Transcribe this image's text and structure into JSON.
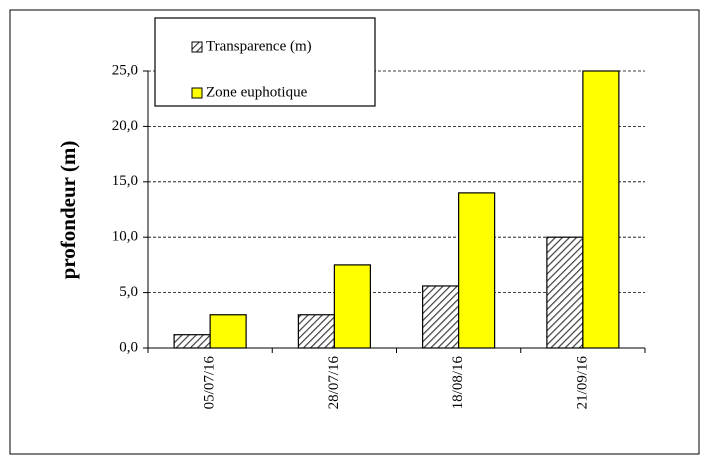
{
  "chart_data": {
    "type": "bar",
    "y_label": "profondeur (m)",
    "categories": [
      "05/07/16",
      "28/07/16",
      "18/08/16",
      "21/09/16"
    ],
    "series": [
      {
        "name": "Transparence (m)",
        "color": "#404040",
        "pattern": "hatch",
        "values": [
          1.2,
          3.0,
          5.6,
          10.0
        ]
      },
      {
        "name": "Zone euphotique",
        "color": "#ffff00",
        "values": [
          3.0,
          7.5,
          14.0,
          25.0
        ]
      }
    ],
    "ylim": [
      0,
      25
    ],
    "yticks": [
      {
        "value": 0,
        "label": "0,0"
      },
      {
        "value": 5,
        "label": "5,0"
      },
      {
        "value": 10,
        "label": "10,0"
      },
      {
        "value": 15,
        "label": "15,0"
      },
      {
        "value": 20,
        "label": "20,0"
      },
      {
        "value": 25,
        "label": "25,0"
      }
    ],
    "grid": true
  }
}
